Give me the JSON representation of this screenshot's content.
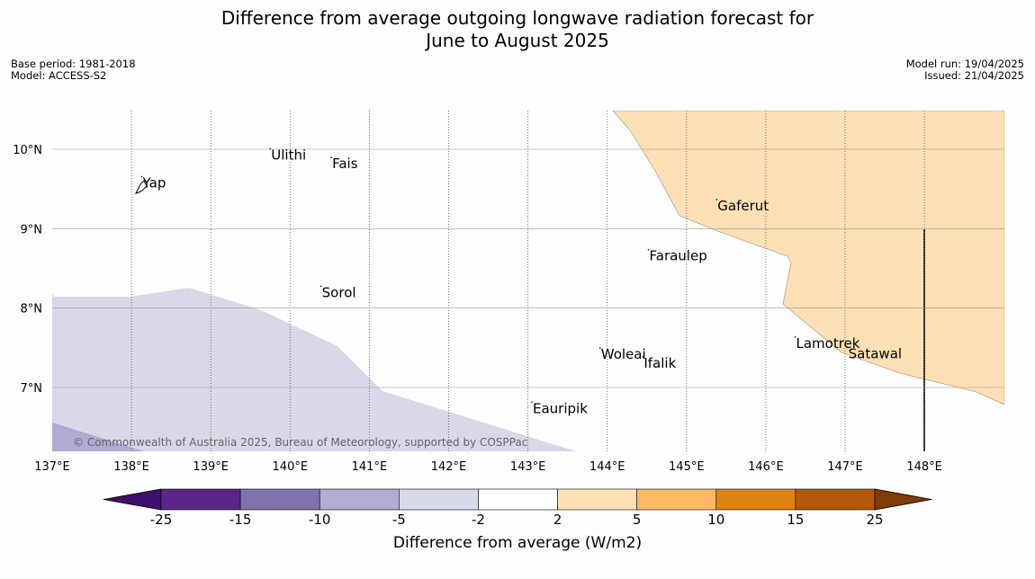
{
  "title": {
    "line1": "Difference from average outgoing longwave radiation forecast for",
    "line2": "June to August 2025"
  },
  "meta": {
    "base_period": "Base period: 1981-2018",
    "model": "Model: ACCESS-S2",
    "model_run": "Model run: 19/04/2025",
    "issued": "Issued: 21/04/2025"
  },
  "map": {
    "lon_range": [
      137,
      149
    ],
    "lat_range": [
      6.2,
      10.5
    ],
    "lon_ticks": [
      "137°E",
      "138°E",
      "139°E",
      "140°E",
      "141°E",
      "142°E",
      "143°E",
      "144°E",
      "145°E",
      "146°E",
      "147°E",
      "148°E"
    ],
    "lat_ticks": [
      "10°N",
      "9°N",
      "8°N",
      "7°N"
    ],
    "places": [
      {
        "name": "Ulithi",
        "lon": 139.75,
        "lat": 9.87
      },
      {
        "name": "Fais",
        "lon": 140.52,
        "lat": 9.76
      },
      {
        "name": "Yap",
        "lon": 138.13,
        "lat": 9.52
      },
      {
        "name": "Gaferut",
        "lon": 145.38,
        "lat": 9.23
      },
      {
        "name": "Faraulep",
        "lon": 144.52,
        "lat": 8.6
      },
      {
        "name": "Sorol",
        "lon": 140.39,
        "lat": 8.14
      },
      {
        "name": "Woleai",
        "lon": 143.91,
        "lat": 7.36
      },
      {
        "name": "Ifalik",
        "lon": 144.45,
        "lat": 7.25
      },
      {
        "name": "Lamotrek",
        "lon": 146.37,
        "lat": 7.5
      },
      {
        "name": "Satawal",
        "lon": 147.03,
        "lat": 7.37
      },
      {
        "name": "Eauripik",
        "lon": 143.05,
        "lat": 6.68
      }
    ],
    "colors": {
      "light_purple": "#d8d8e8",
      "medium_purple": "#b2aad4",
      "light_orange": "#fde0b6"
    },
    "copyright": "© Commonwealth of Australia 2025, Bureau of Meteorology, supported by COSPPac"
  },
  "colorbar": {
    "title": "Difference from average (W/m2)",
    "labels": [
      "-25",
      "-15",
      "-10",
      "-5",
      "-2",
      "2",
      "5",
      "10",
      "15",
      "25"
    ],
    "colors": [
      "#3f0f6c",
      "#5b2589",
      "#8073ac",
      "#b2abd2",
      "#d8daeb",
      "#ffffff",
      "#fee0b6",
      "#fdb863",
      "#e08214",
      "#b35806",
      "#7f3b08"
    ]
  }
}
